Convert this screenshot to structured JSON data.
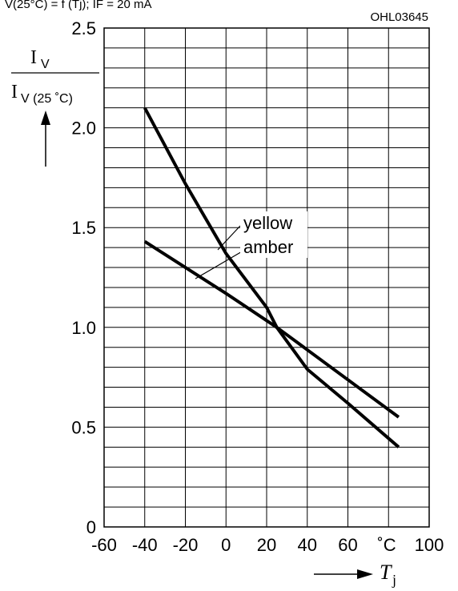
{
  "header_fragment": "V(25°C) = f (Tj); IF = 20 mA",
  "chart_data": {
    "type": "line",
    "title": "",
    "figure_code": "OHL03645",
    "ylabel": {
      "top": "I",
      "top_sub": "V",
      "bottom": "I",
      "bottom_sub": "V (25 ˚C)"
    },
    "xlabel": {
      "symbol": "T",
      "sub": "j"
    },
    "x_unit_label": "˚C",
    "xlim": [
      -60,
      100
    ],
    "ylim": [
      0,
      2.5
    ],
    "x_ticks": [
      -60,
      -40,
      -20,
      0,
      20,
      40,
      60,
      100
    ],
    "x_tick_labels": [
      "-60",
      "-40",
      "-20",
      "0",
      "20",
      "40",
      "60",
      "100"
    ],
    "y_ticks": [
      0,
      0.5,
      1.0,
      1.5,
      2.0,
      2.5
    ],
    "y_tick_labels": [
      "0",
      "0.5",
      "1.0",
      "1.5",
      "2.0",
      "2.5"
    ],
    "x_grid_step": 20,
    "y_grid_step": 0.1,
    "grid": true,
    "series": [
      {
        "name": "yellow",
        "x": [
          -40,
          -20,
          0,
          20,
          25,
          40,
          60,
          85
        ],
        "y": [
          2.1,
          1.72,
          1.37,
          1.1,
          1.0,
          0.79,
          0.62,
          0.4
        ]
      },
      {
        "name": "amber",
        "x": [
          -40,
          0,
          25,
          85
        ],
        "y": [
          1.43,
          1.17,
          1.0,
          0.55
        ]
      }
    ],
    "annotations": [
      {
        "text": "yellow",
        "series": "yellow"
      },
      {
        "text": "amber",
        "series": "amber"
      }
    ]
  }
}
